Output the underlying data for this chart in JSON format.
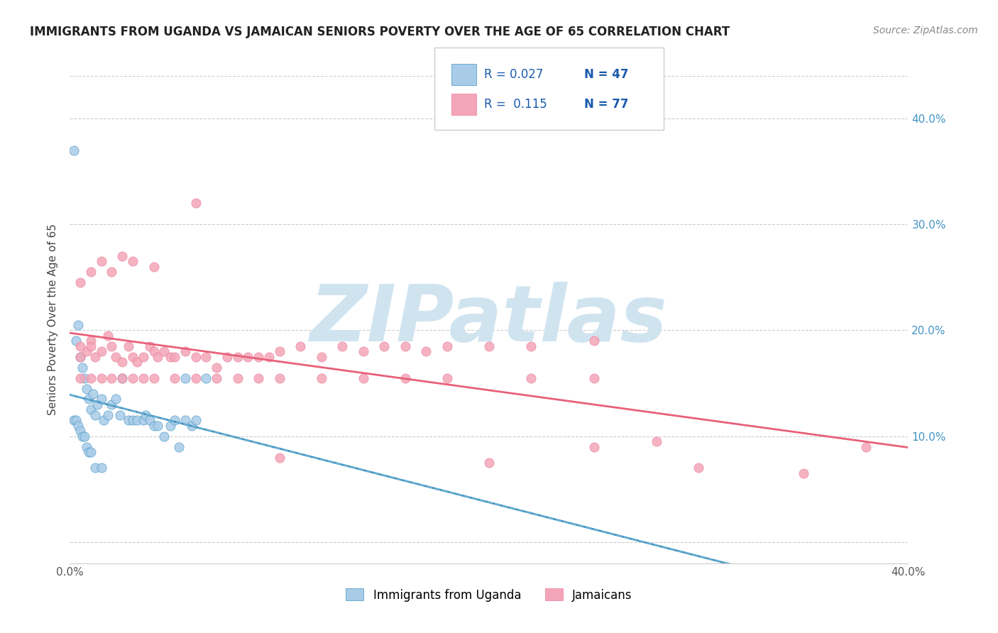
{
  "title": "IMMIGRANTS FROM UGANDA VS JAMAICAN SENIORS POVERTY OVER THE AGE OF 65 CORRELATION CHART",
  "source": "Source: ZipAtlas.com",
  "ylabel": "Seniors Poverty Over the Age of 65",
  "xlim": [
    0.0,
    0.4
  ],
  "ylim": [
    -0.02,
    0.44
  ],
  "color_uganda": "#A8CCE8",
  "color_jamaica": "#F4A6B8",
  "line_color_uganda_solid": "#4393C3",
  "line_color_uganda_dash": "#7BBBD8",
  "line_color_jamaica": "#E8607A",
  "watermark_text": "ZIPatlas",
  "watermark_color": "#D0E4F0",
  "uganda_x": [
    0.002,
    0.003,
    0.004,
    0.005,
    0.006,
    0.007,
    0.008,
    0.009,
    0.01,
    0.011,
    0.012,
    0.013,
    0.015,
    0.016,
    0.018,
    0.02,
    0.022,
    0.024,
    0.025,
    0.028,
    0.03,
    0.032,
    0.035,
    0.036,
    0.038,
    0.04,
    0.042,
    0.045,
    0.048,
    0.05,
    0.052,
    0.055,
    0.058,
    0.06,
    0.002,
    0.003,
    0.004,
    0.005,
    0.006,
    0.007,
    0.008,
    0.009,
    0.01,
    0.012,
    0.015,
    0.055,
    0.065
  ],
  "uganda_y": [
    0.37,
    0.19,
    0.205,
    0.175,
    0.165,
    0.155,
    0.145,
    0.135,
    0.125,
    0.14,
    0.12,
    0.13,
    0.135,
    0.115,
    0.12,
    0.13,
    0.135,
    0.12,
    0.155,
    0.115,
    0.115,
    0.115,
    0.115,
    0.12,
    0.115,
    0.11,
    0.11,
    0.1,
    0.11,
    0.115,
    0.09,
    0.115,
    0.11,
    0.115,
    0.115,
    0.115,
    0.11,
    0.105,
    0.1,
    0.1,
    0.09,
    0.085,
    0.085,
    0.07,
    0.07,
    0.155,
    0.155
  ],
  "jamaica_x": [
    0.005,
    0.008,
    0.01,
    0.012,
    0.015,
    0.018,
    0.02,
    0.022,
    0.025,
    0.028,
    0.03,
    0.032,
    0.035,
    0.038,
    0.04,
    0.042,
    0.045,
    0.048,
    0.05,
    0.055,
    0.06,
    0.065,
    0.07,
    0.075,
    0.08,
    0.085,
    0.09,
    0.095,
    0.1,
    0.11,
    0.12,
    0.13,
    0.14,
    0.15,
    0.16,
    0.17,
    0.18,
    0.2,
    0.22,
    0.25,
    0.005,
    0.01,
    0.015,
    0.02,
    0.025,
    0.03,
    0.035,
    0.04,
    0.05,
    0.06,
    0.07,
    0.08,
    0.09,
    0.1,
    0.12,
    0.14,
    0.16,
    0.18,
    0.22,
    0.25,
    0.005,
    0.01,
    0.015,
    0.02,
    0.025,
    0.03,
    0.04,
    0.06,
    0.1,
    0.2,
    0.25,
    0.28,
    0.3,
    0.35,
    0.38,
    0.005,
    0.01
  ],
  "jamaica_y": [
    0.175,
    0.18,
    0.19,
    0.175,
    0.18,
    0.195,
    0.185,
    0.175,
    0.17,
    0.185,
    0.175,
    0.17,
    0.175,
    0.185,
    0.18,
    0.175,
    0.18,
    0.175,
    0.175,
    0.18,
    0.175,
    0.175,
    0.165,
    0.175,
    0.175,
    0.175,
    0.175,
    0.175,
    0.18,
    0.185,
    0.175,
    0.185,
    0.18,
    0.185,
    0.185,
    0.18,
    0.185,
    0.185,
    0.185,
    0.19,
    0.155,
    0.155,
    0.155,
    0.155,
    0.155,
    0.155,
    0.155,
    0.155,
    0.155,
    0.155,
    0.155,
    0.155,
    0.155,
    0.155,
    0.155,
    0.155,
    0.155,
    0.155,
    0.155,
    0.155,
    0.245,
    0.255,
    0.265,
    0.255,
    0.27,
    0.265,
    0.26,
    0.32,
    0.08,
    0.075,
    0.09,
    0.095,
    0.07,
    0.065,
    0.09,
    0.185,
    0.185
  ]
}
